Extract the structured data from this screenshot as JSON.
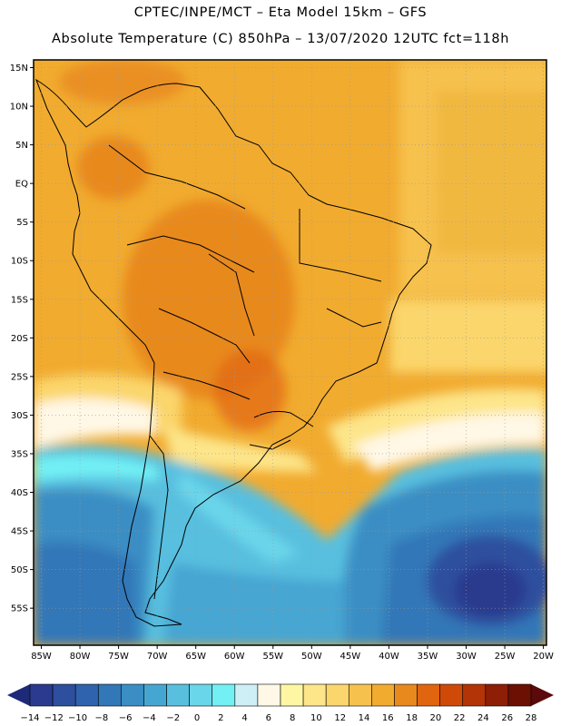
{
  "header": {
    "title_line1": "CPTEC/INPE/MCT –  Eta Model 15km – GFS",
    "title_line2": "Absolute Temperature (C) 850hPa – 13/07/2020 12UTC fct=118h"
  },
  "map": {
    "lat_labels": [
      "15N",
      "10N",
      "5N",
      "EQ",
      "5S",
      "10S",
      "15S",
      "20S",
      "25S",
      "30S",
      "35S",
      "40S",
      "45S",
      "50S",
      "55S"
    ],
    "lon_labels": [
      "85W",
      "80W",
      "75W",
      "70W",
      "65W",
      "60W",
      "55W",
      "50W",
      "45W",
      "40W",
      "35W",
      "30W",
      "25W",
      "20W"
    ],
    "lat_values": [
      15,
      10,
      5,
      0,
      -5,
      -10,
      -15,
      -20,
      -25,
      -30,
      -35,
      -40,
      -45,
      -50,
      -55
    ],
    "lon_values": [
      -85,
      -80,
      -75,
      -70,
      -65,
      -60,
      -55,
      -50,
      -45,
      -40,
      -35,
      -30,
      -25,
      -20
    ],
    "gridlines": "dotted"
  },
  "colorbar": {
    "labels": [
      "-14",
      "-12",
      "-10",
      "-8",
      "-6",
      "-4",
      "-2",
      "0",
      "2",
      "4",
      "6",
      "8",
      "10",
      "12",
      "14",
      "16",
      "18",
      "20",
      "22",
      "24",
      "26",
      "28"
    ],
    "colors": [
      "#2b3a8e",
      "#2d4f9e",
      "#2f63ad",
      "#3277b8",
      "#3a8ec4",
      "#46a6d2",
      "#58bfdf",
      "#6ad6ea",
      "#72f0f4",
      "#cfeff7",
      "#fff8e6",
      "#fff6a3",
      "#fde58a",
      "#fbd66c",
      "#f6c14d",
      "#f1ab2f",
      "#e8891e",
      "#e1650e",
      "#cf4a09",
      "#b33407",
      "#8e1e06",
      "#6b1003"
    ],
    "under_color": "#1e2a78",
    "over_color": "#5a0a0a"
  }
}
